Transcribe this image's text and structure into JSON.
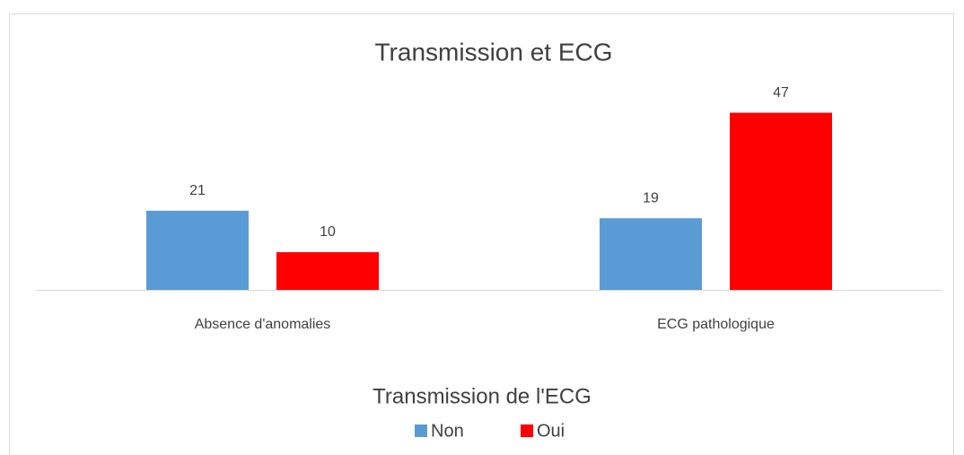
{
  "chart_data": {
    "type": "bar",
    "title": "Transmission et ECG",
    "categories": [
      "Absence d'anomalies",
      "ECG pathologique"
    ],
    "series": [
      {
        "name": "Non",
        "color": "#5b9bd5",
        "values": [
          21,
          19
        ]
      },
      {
        "name": "Oui",
        "color": "#ff0000",
        "values": [
          10,
          47
        ]
      }
    ],
    "ylim": [
      0,
      50
    ],
    "legend_title": "Transmission de l'ECG",
    "legend": "bottom"
  }
}
